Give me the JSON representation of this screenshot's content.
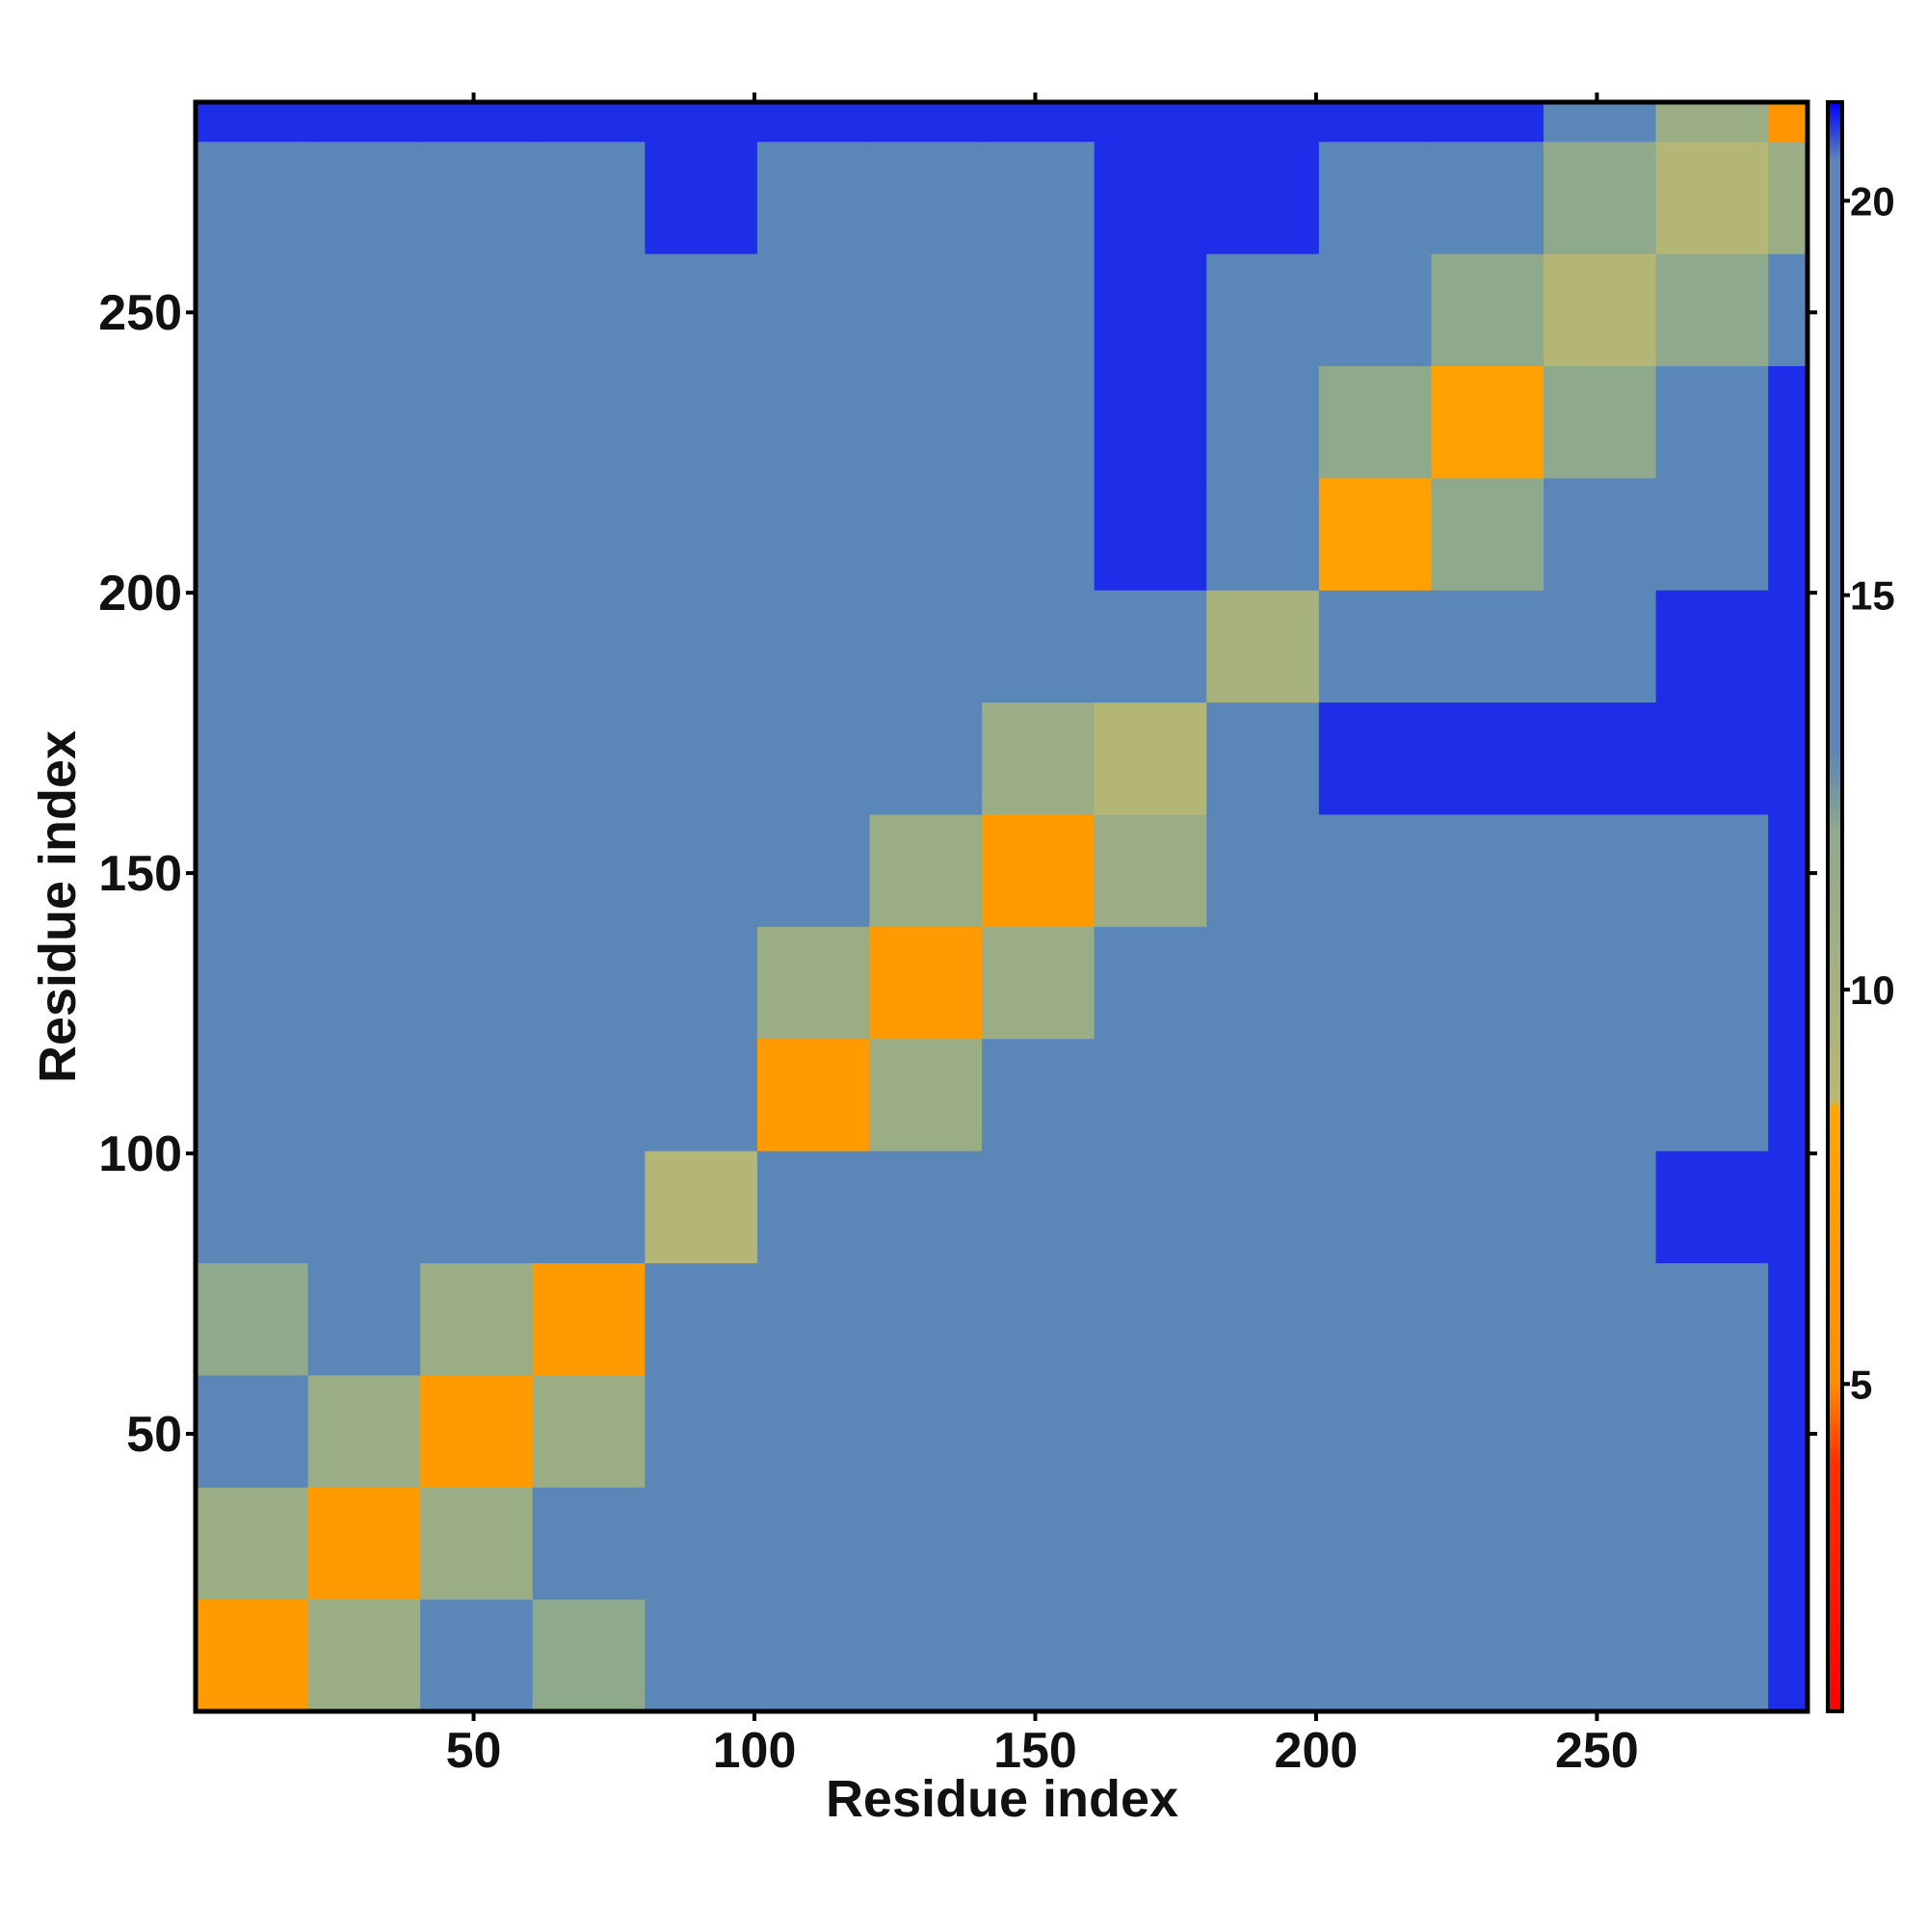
{
  "chart_data": {
    "type": "heatmap",
    "xlabel": "Residue index",
    "ylabel": "Residue index",
    "xlim": [
      0.5,
      287.5
    ],
    "ylim": [
      0.5,
      287.5
    ],
    "xticks": [
      50,
      100,
      150,
      200,
      250
    ],
    "yticks": [
      50,
      100,
      150,
      200,
      250
    ],
    "x_edges": [
      0.5,
      20.5,
      40.5,
      60.5,
      80.5,
      100.5,
      120.5,
      140.5,
      160.5,
      180.5,
      200.5,
      220.5,
      240.5,
      260.5,
      280.5,
      287.5
    ],
    "y_edges": [
      0.5,
      20.5,
      40.5,
      60.5,
      80.5,
      100.5,
      120.5,
      140.5,
      160.5,
      180.5,
      200.5,
      220.5,
      240.5,
      260.5,
      280.5,
      287.5
    ],
    "values": [
      [
        7,
        11,
        13,
        12,
        16,
        19,
        19,
        19,
        19,
        20.5,
        20.5,
        20.5,
        20.5,
        20.5,
        21
      ],
      [
        11,
        7,
        11,
        13,
        17,
        19,
        19,
        19,
        19,
        20.5,
        20.5,
        20.5,
        20.5,
        20.5,
        21
      ],
      [
        13,
        11,
        7,
        11,
        16,
        19,
        19,
        19,
        19,
        20.5,
        20.5,
        20.5,
        20.5,
        20.5,
        21
      ],
      [
        12,
        13,
        11,
        7,
        14,
        19,
        19,
        19,
        19,
        20.5,
        20.5,
        20.5,
        20.5,
        20.5,
        21
      ],
      [
        16,
        17,
        16,
        14,
        9,
        19.5,
        19.5,
        19.5,
        19.5,
        20.5,
        20.5,
        20.5,
        20.5,
        21,
        21
      ],
      [
        19,
        19,
        19,
        19,
        19.5,
        7,
        11,
        13,
        14,
        19,
        20,
        20,
        20,
        20.5,
        21
      ],
      [
        19,
        19,
        19,
        19,
        19.5,
        11,
        7,
        11,
        13,
        19,
        20,
        20,
        20,
        20.5,
        21
      ],
      [
        19,
        19,
        19,
        19,
        19.5,
        13,
        11,
        7,
        11,
        19.5,
        20.5,
        20.5,
        20.5,
        20.5,
        21
      ],
      [
        19,
        19,
        19,
        19,
        19.5,
        14,
        13,
        11,
        9,
        16,
        21,
        21,
        21,
        21,
        21
      ],
      [
        20.5,
        20.5,
        20.5,
        20.5,
        20.5,
        19,
        19,
        19.5,
        16,
        10,
        13,
        15,
        18,
        21,
        21
      ],
      [
        20.5,
        20.5,
        20.5,
        20.5,
        20.5,
        20,
        20,
        20.5,
        21,
        13,
        8,
        12,
        15,
        20,
        21
      ],
      [
        20.5,
        20.5,
        20.5,
        20.5,
        20.5,
        20,
        20,
        20.5,
        21,
        15,
        12,
        8,
        12,
        17,
        21
      ],
      [
        20.5,
        20.5,
        20.5,
        20.5,
        20.5,
        20,
        20,
        20.5,
        21,
        18,
        15,
        12,
        9,
        12,
        18
      ],
      [
        20.5,
        20.5,
        20.5,
        20.5,
        21,
        20.5,
        20.5,
        20.5,
        21,
        21,
        20,
        17,
        12,
        9,
        11
      ],
      [
        21,
        21,
        21,
        21,
        21,
        21,
        21,
        21,
        21,
        21,
        21,
        21,
        18,
        11,
        6
      ]
    ],
    "clim": [
      0.85,
      21.25
    ],
    "cticks": [
      5,
      10,
      15,
      20
    ],
    "colorscale": [
      {
        "value": 0.85,
        "color": "#ff0000"
      },
      {
        "value": 4,
        "color": "#ff3000"
      },
      {
        "value": 5,
        "color": "#ff8c00"
      },
      {
        "value": 8.5,
        "color": "#ffa500"
      },
      {
        "value": 8.6,
        "color": "#b8b872"
      },
      {
        "value": 12,
        "color": "#8ea98c"
      },
      {
        "value": 13,
        "color": "#5b87b8"
      },
      {
        "value": 20.5,
        "color": "#5b87b8"
      },
      {
        "value": 21.25,
        "color": "#0000ff"
      }
    ]
  }
}
